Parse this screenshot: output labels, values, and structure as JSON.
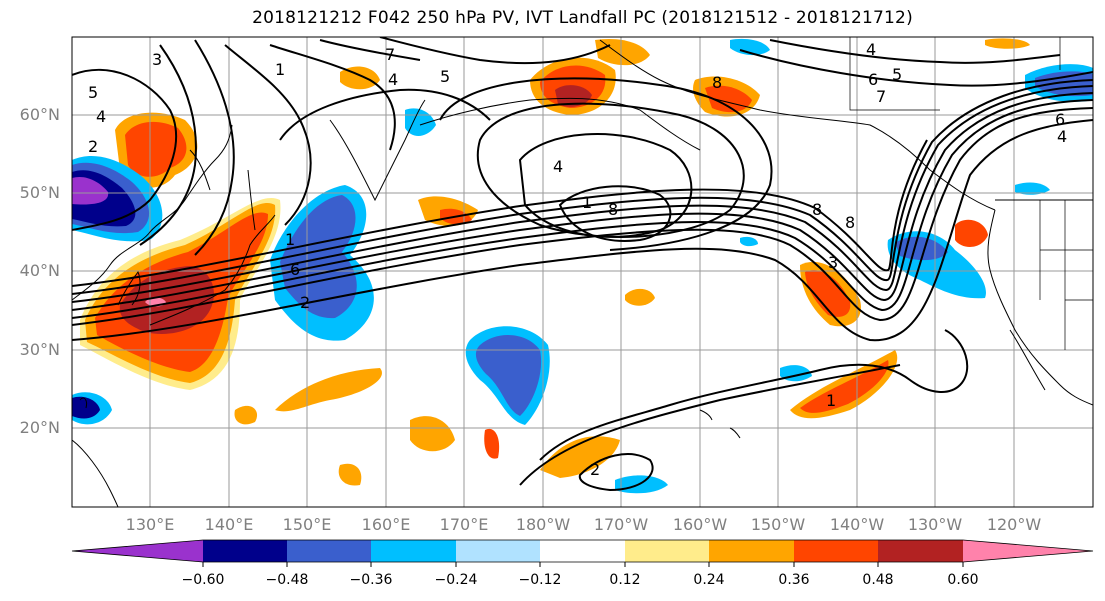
{
  "title": "2018121212 F042 250 hPa PV, IVT Landfall PC (2018121512 - 2018121712)",
  "lat_labels": [
    "60°N",
    "50°N",
    "40°N",
    "30°N",
    "20°N"
  ],
  "lon_labels": [
    "130°E",
    "140°E",
    "150°E",
    "160°E",
    "170°E",
    "180°W",
    "170°W",
    "160°W",
    "150°W",
    "140°W",
    "130°W",
    "120°W"
  ],
  "colorbar": {
    "colors": [
      "#9a32cd",
      "#00008b",
      "#3a5fcd",
      "#00bfff",
      "#b0e2ff",
      "#ffffff",
      "#ffec8b",
      "#ffa500",
      "#ff4500",
      "#b22222",
      "#ff82ab"
    ],
    "tick_labels": [
      "−0.60",
      "−0.48",
      "−0.36",
      "−0.24",
      "−0.12",
      "0.12",
      "0.24",
      "0.36",
      "0.48",
      "0.60"
    ]
  },
  "contour_labels": [
    "3",
    "4",
    "5",
    "1",
    "7",
    "2",
    "4",
    "5",
    "8",
    "4",
    "6",
    "5",
    "7",
    "6",
    "4",
    "1",
    "8",
    "4",
    "8",
    "8",
    "3",
    "1",
    "6",
    "2",
    "1",
    "2"
  ],
  "shading_colors": {
    "neg_strong": "#00008b",
    "neg_mid": "#3a5fcd",
    "neg_weak": "#00bfff",
    "neg_faint": "#b0e2ff",
    "pos_faint": "#ffec8b",
    "pos_weak": "#ffa500",
    "pos_mid": "#ff4500",
    "pos_strong": "#b22222",
    "pos_max": "#ff82ab",
    "neg_max": "#9a32cd"
  }
}
